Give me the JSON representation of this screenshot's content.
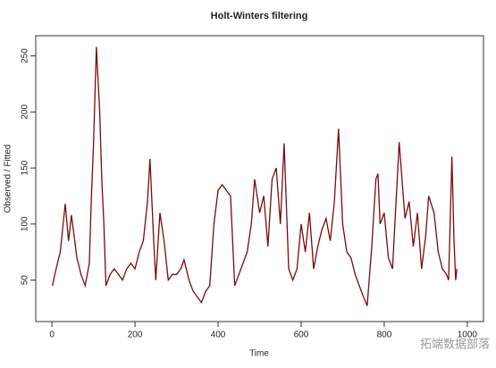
{
  "chart_data": {
    "type": "line",
    "title": "Holt-Winters filtering",
    "xlabel": "Time",
    "ylabel": "Observed / Fitted",
    "watermark": "拓端数据部落",
    "color": "#7a0a0a",
    "x": [
      1,
      10,
      20,
      32,
      40,
      47,
      60,
      70,
      80,
      90,
      95,
      100,
      107,
      115,
      120,
      125,
      130,
      140,
      150,
      160,
      170,
      180,
      190,
      200,
      210,
      220,
      230,
      236,
      245,
      250,
      260,
      270,
      280,
      290,
      300,
      310,
      318,
      330,
      340,
      350,
      360,
      370,
      380,
      390,
      400,
      410,
      420,
      430,
      440,
      450,
      460,
      470,
      480,
      488,
      500,
      510,
      520,
      530,
      540,
      550,
      559,
      570,
      580,
      590,
      600,
      610,
      620,
      630,
      640,
      650,
      660,
      670,
      680,
      690,
      700,
      710,
      720,
      730,
      740,
      750,
      759,
      770,
      780,
      785,
      790,
      800,
      810,
      820,
      836,
      850,
      860,
      870,
      880,
      890,
      900,
      907,
      920,
      930,
      940,
      950,
      955,
      963,
      968,
      972,
      975
    ],
    "values": [
      45,
      60,
      75,
      118,
      85,
      108,
      70,
      55,
      45,
      65,
      125,
      170,
      258,
      200,
      140,
      100,
      45,
      55,
      60,
      55,
      50,
      60,
      65,
      60,
      75,
      85,
      120,
      158,
      85,
      50,
      110,
      85,
      50,
      55,
      55,
      60,
      68,
      50,
      40,
      35,
      30,
      40,
      45,
      100,
      130,
      135,
      130,
      125,
      45,
      55,
      65,
      75,
      100,
      140,
      110,
      125,
      80,
      140,
      150,
      100,
      172,
      60,
      50,
      60,
      100,
      75,
      110,
      60,
      80,
      95,
      105,
      85,
      120,
      185,
      100,
      75,
      70,
      55,
      45,
      35,
      27,
      80,
      140,
      145,
      100,
      110,
      70,
      60,
      173,
      105,
      120,
      80,
      110,
      60,
      90,
      125,
      110,
      75,
      60,
      55,
      50,
      160,
      85,
      50,
      60
    ],
    "xlim": [
      -39,
      1039
    ],
    "ylim": [
      13,
      268
    ],
    "xticks": [
      0,
      200,
      400,
      600,
      800,
      1000
    ],
    "yticks": [
      50,
      100,
      150,
      200,
      250
    ]
  }
}
